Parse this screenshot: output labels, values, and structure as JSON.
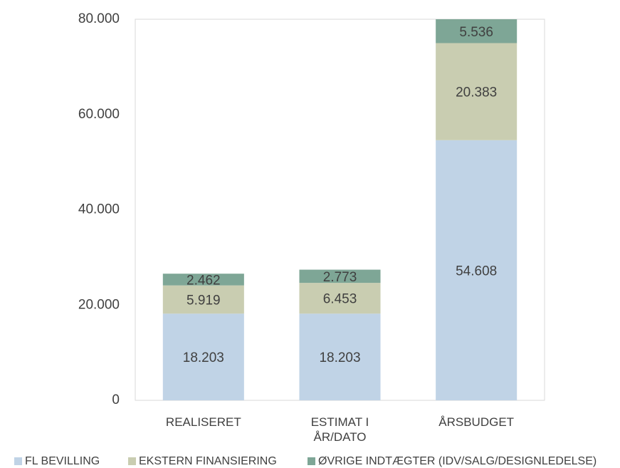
{
  "chart_data": {
    "type": "stacked_bar",
    "categories": [
      "REALISERET",
      "ESTIMAT I ÅR/DATO",
      "ÅRSBUDGET"
    ],
    "series": [
      {
        "name": "FL BEVILLING",
        "color": "#c0d3e6",
        "values": [
          18203,
          18203,
          54608
        ],
        "value_labels": [
          "18.203",
          "18.203",
          "54.608"
        ]
      },
      {
        "name": "EKSTERN FINANSIERING",
        "color": "#c9cdb1",
        "values": [
          5919,
          6453,
          20383
        ],
        "value_labels": [
          "5.919",
          "6.453",
          "20.383"
        ]
      },
      {
        "name": "ØVRIGE INDTÆGTER (IDV/SALG/DESIGNLEDELSE)",
        "color": "#7ea696",
        "values": [
          2462,
          2773,
          5536
        ],
        "value_labels": [
          "2.462",
          "2.773",
          "5.536"
        ]
      }
    ],
    "ylim": [
      0,
      80000
    ],
    "yticks": [
      0,
      {
        "value": 20000,
        "label": "20.000"
      },
      {
        "value": 40000,
        "label": "40.000"
      },
      {
        "value": 60000,
        "label": "60.000"
      },
      {
        "value": 80000,
        "label": "80.000"
      }
    ],
    "grid": false,
    "legend": "bottom"
  }
}
